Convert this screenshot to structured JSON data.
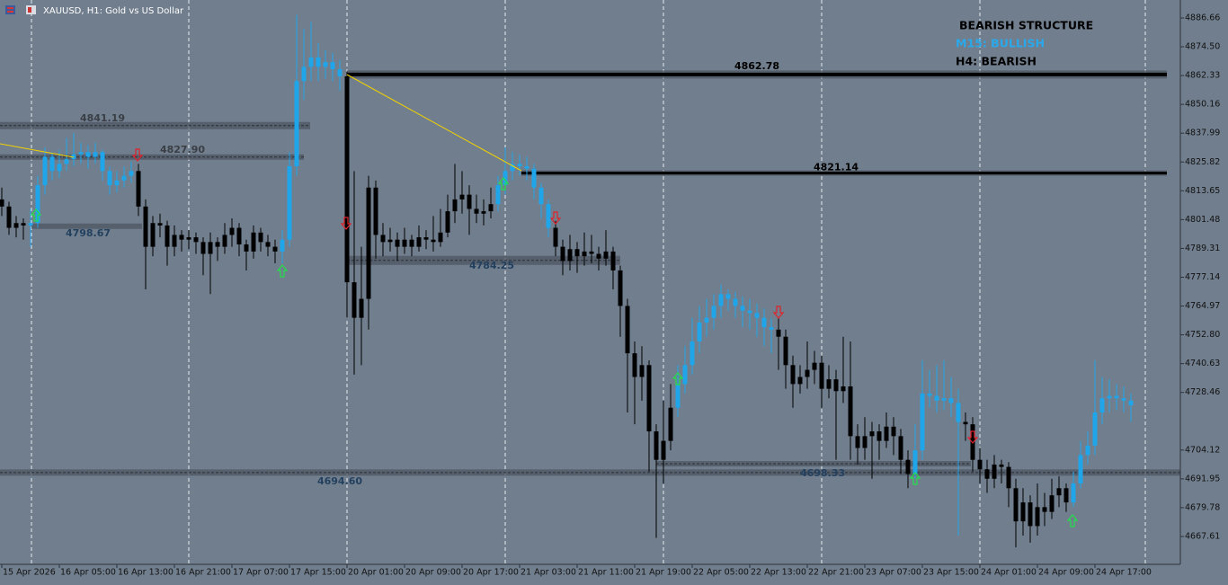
{
  "chart_data": {
    "type": "candlestick",
    "title": "XAUUSD, H1:  Gold vs US Dollar",
    "annotations": [
      "BEARISH STRUCTURE",
      "M15: BULLISH",
      "H4: BEARISH"
    ],
    "annotation_colors": [
      "#000000",
      "#29a9ea",
      "#000000"
    ],
    "palette": [
      "#000000",
      "#1fa6ea"
    ],
    "categories": [
      "15 Apr 2026",
      null,
      null,
      null,
      null,
      null,
      null,
      null,
      "16 Apr 05:00",
      null,
      null,
      null,
      null,
      null,
      null,
      null,
      "16 Apr 13:00",
      null,
      null,
      null,
      null,
      null,
      null,
      null,
      "16 Apr 21:00",
      null,
      null,
      null,
      null,
      null,
      null,
      null,
      "17 Apr 07:00",
      null,
      null,
      null,
      null,
      null,
      null,
      null,
      "17 Apr 15:00",
      null,
      null,
      null,
      null,
      null,
      null,
      null,
      "20 Apr 01:00",
      null,
      null,
      null,
      null,
      null,
      null,
      null,
      "20 Apr 09:00",
      null,
      null,
      null,
      null,
      null,
      null,
      null,
      "20 Apr 17:00",
      null,
      null,
      null,
      null,
      null,
      null,
      null,
      "21 Apr 03:00",
      null,
      null,
      null,
      null,
      null,
      null,
      null,
      "21 Apr 11:00",
      null,
      null,
      null,
      null,
      null,
      null,
      null,
      "21 Apr 19:00",
      null,
      null,
      null,
      null,
      null,
      null,
      null,
      "22 Apr 05:00",
      null,
      null,
      null,
      null,
      null,
      null,
      null,
      "22 Apr 13:00",
      null,
      null,
      null,
      null,
      null,
      null,
      null,
      "22 Apr 21:00",
      null,
      null,
      null,
      null,
      null,
      null,
      null,
      "23 Apr 07:00",
      null,
      null,
      null,
      null,
      null,
      null,
      null,
      "23 Apr 15:00",
      null,
      null,
      null,
      null,
      null,
      null,
      null,
      "24 Apr 01:00",
      null,
      null,
      null,
      null,
      null,
      null,
      null,
      "24 Apr 09:00",
      null,
      null,
      null,
      null,
      null,
      null,
      null,
      "24 Apr 17:00",
      null,
      null,
      null,
      null,
      null
    ],
    "ohlc": [
      [
        4810,
        4815,
        4803,
        4807
      ],
      [
        4807,
        4809,
        4795,
        4798
      ],
      [
        4798,
        4803,
        4794,
        4800
      ],
      [
        4800,
        4802,
        4793,
        4799
      ],
      [
        4799,
        4806,
        4790,
        4800
      ],
      [
        4800,
        4820,
        4798,
        4816
      ],
      [
        4816,
        4832,
        4812,
        4828
      ],
      [
        4828,
        4830,
        4818,
        4822
      ],
      [
        4822,
        4831,
        4819,
        4825
      ],
      [
        4825,
        4836,
        4822,
        4827
      ],
      [
        4827,
        4838,
        4824,
        4829
      ],
      [
        4829,
        4834,
        4825,
        4830
      ],
      [
        4830,
        4833,
        4823,
        4828
      ],
      [
        4828,
        4834,
        4825,
        4830
      ],
      [
        4830,
        4831,
        4818,
        4822
      ],
      [
        4822,
        4824,
        4812,
        4816
      ],
      [
        4816,
        4822,
        4813,
        4818
      ],
      [
        4818,
        4824,
        4815,
        4820
      ],
      [
        4820,
        4826,
        4817,
        4822
      ],
      [
        4822,
        4825,
        4803,
        4807
      ],
      [
        4807,
        4810,
        4772,
        4790
      ],
      [
        4790,
        4803,
        4786,
        4800
      ],
      [
        4800,
        4804,
        4794,
        4799
      ],
      [
        4799,
        4801,
        4782,
        4790
      ],
      [
        4790,
        4799,
        4786,
        4795
      ],
      [
        4795,
        4797,
        4788,
        4793
      ],
      [
        4793,
        4797,
        4789,
        4794
      ],
      [
        4794,
        4796,
        4787,
        4792
      ],
      [
        4792,
        4794,
        4778,
        4787
      ],
      [
        4787,
        4796,
        4770,
        4792
      ],
      [
        4792,
        4794,
        4784,
        4790
      ],
      [
        4790,
        4800,
        4787,
        4795
      ],
      [
        4795,
        4802,
        4790,
        4798
      ],
      [
        4798,
        4800,
        4786,
        4791
      ],
      [
        4791,
        4793,
        4780,
        4788
      ],
      [
        4788,
        4799,
        4785,
        4796
      ],
      [
        4796,
        4798,
        4788,
        4792
      ],
      [
        4792,
        4795,
        4786,
        4790
      ],
      [
        4790,
        4793,
        4783,
        4788
      ],
      [
        4788,
        4797,
        4783,
        4793
      ],
      [
        4793,
        4830,
        4790,
        4824
      ],
      [
        4824,
        4888,
        4820,
        4860
      ],
      [
        4860,
        4882,
        4852,
        4866
      ],
      [
        4866,
        4885,
        4860,
        4870
      ],
      [
        4870,
        4876,
        4860,
        4866
      ],
      [
        4866,
        4873,
        4861,
        4868
      ],
      [
        4868,
        4872,
        4860,
        4865
      ],
      [
        4865,
        4869,
        4856,
        4862
      ],
      [
        4862,
        4864,
        4760,
        4775
      ],
      [
        4775,
        4822,
        4736,
        4760
      ],
      [
        4760,
        4790,
        4740,
        4768
      ],
      [
        4768,
        4820,
        4755,
        4815
      ],
      [
        4815,
        4818,
        4785,
        4795
      ],
      [
        4795,
        4800,
        4786,
        4792
      ],
      [
        4792,
        4798,
        4788,
        4793
      ],
      [
        4793,
        4796,
        4784,
        4790
      ],
      [
        4790,
        4798,
        4787,
        4793
      ],
      [
        4793,
        4795,
        4786,
        4790
      ],
      [
        4790,
        4799,
        4788,
        4794
      ],
      [
        4794,
        4797,
        4789,
        4793
      ],
      [
        4793,
        4803,
        4788,
        4792
      ],
      [
        4792,
        4806,
        4790,
        4796
      ],
      [
        4796,
        4812,
        4794,
        4805
      ],
      [
        4805,
        4825,
        4800,
        4810
      ],
      [
        4810,
        4822,
        4804,
        4812
      ],
      [
        4812,
        4816,
        4795,
        4806
      ],
      [
        4806,
        4812,
        4800,
        4804
      ],
      [
        4804,
        4810,
        4799,
        4805
      ],
      [
        4805,
        4815,
        4802,
        4808
      ],
      [
        4808,
        4820,
        4805,
        4816
      ],
      [
        4816,
        4832,
        4812,
        4822
      ],
      [
        4822,
        4830,
        4818,
        4825
      ],
      [
        4825,
        4829,
        4820,
        4824
      ],
      [
        4824,
        4828,
        4818,
        4823
      ],
      [
        4823,
        4825,
        4810,
        4815
      ],
      [
        4815,
        4817,
        4802,
        4808
      ],
      [
        4808,
        4810,
        4794,
        4798
      ],
      [
        4798,
        4801,
        4786,
        4790
      ],
      [
        4790,
        4793,
        4778,
        4784
      ],
      [
        4784,
        4795,
        4780,
        4789
      ],
      [
        4789,
        4792,
        4779,
        4786
      ],
      [
        4786,
        4796,
        4782,
        4788
      ],
      [
        4788,
        4795,
        4783,
        4787
      ],
      [
        4787,
        4790,
        4780,
        4785
      ],
      [
        4785,
        4797,
        4782,
        4788
      ],
      [
        4788,
        4790,
        4772,
        4780
      ],
      [
        4780,
        4782,
        4752,
        4765
      ],
      [
        4765,
        4768,
        4720,
        4745
      ],
      [
        4745,
        4750,
        4715,
        4735
      ],
      [
        4735,
        4748,
        4725,
        4740
      ],
      [
        4740,
        4742,
        4695,
        4712
      ],
      [
        4712,
        4715,
        4667,
        4700
      ],
      [
        4700,
        4725,
        4690,
        4708
      ],
      [
        4708,
        4732,
        4704,
        4722
      ],
      [
        4722,
        4740,
        4718,
        4732
      ],
      [
        4732,
        4748,
        4728,
        4740
      ],
      [
        4740,
        4760,
        4736,
        4750
      ],
      [
        4750,
        4765,
        4745,
        4758
      ],
      [
        4758,
        4768,
        4752,
        4760
      ],
      [
        4760,
        4770,
        4755,
        4765
      ],
      [
        4765,
        4774,
        4760,
        4770
      ],
      [
        4770,
        4772,
        4763,
        4768
      ],
      [
        4768,
        4771,
        4760,
        4765
      ],
      [
        4765,
        4769,
        4756,
        4763
      ],
      [
        4763,
        4768,
        4755,
        4762
      ],
      [
        4762,
        4766,
        4752,
        4760
      ],
      [
        4760,
        4764,
        4748,
        4756
      ],
      [
        4756,
        4760,
        4745,
        4755
      ],
      [
        4755,
        4760,
        4738,
        4752
      ],
      [
        4752,
        4755,
        4730,
        4740
      ],
      [
        4740,
        4744,
        4722,
        4732
      ],
      [
        4732,
        4740,
        4728,
        4735
      ],
      [
        4735,
        4750,
        4730,
        4738
      ],
      [
        4738,
        4746,
        4732,
        4741
      ],
      [
        4741,
        4744,
        4722,
        4730
      ],
      [
        4730,
        4740,
        4726,
        4734
      ],
      [
        4734,
        4738,
        4700,
        4729
      ],
      [
        4729,
        4752,
        4724,
        4731
      ],
      [
        4731,
        4750,
        4700,
        4710
      ],
      [
        4710,
        4715,
        4698,
        4705
      ],
      [
        4705,
        4718,
        4700,
        4710
      ],
      [
        4710,
        4716,
        4692,
        4712
      ],
      [
        4712,
        4715,
        4700,
        4708
      ],
      [
        4708,
        4720,
        4705,
        4714
      ],
      [
        4714,
        4718,
        4702,
        4710
      ],
      [
        4710,
        4713,
        4694,
        4700
      ],
      [
        4700,
        4704,
        4688,
        4694
      ],
      [
        4694,
        4715,
        4692,
        4704
      ],
      [
        4704,
        4742,
        4700,
        4728
      ],
      [
        4728,
        4738,
        4722,
        4727
      ],
      [
        4727,
        4740,
        4720,
        4725
      ],
      [
        4725,
        4742,
        4721,
        4726
      ],
      [
        4726,
        4735,
        4718,
        4724
      ],
      [
        4724,
        4730,
        4668,
        4716
      ],
      [
        4716,
        4720,
        4708,
        4715
      ],
      [
        4715,
        4718,
        4695,
        4700
      ],
      [
        4700,
        4705,
        4690,
        4696
      ],
      [
        4696,
        4700,
        4686,
        4692
      ],
      [
        4692,
        4702,
        4688,
        4698
      ],
      [
        4698,
        4700,
        4690,
        4697
      ],
      [
        4697,
        4699,
        4680,
        4688
      ],
      [
        4688,
        4692,
        4663,
        4674
      ],
      [
        4674,
        4688,
        4668,
        4682
      ],
      [
        4682,
        4685,
        4665,
        4672
      ],
      [
        4672,
        4690,
        4668,
        4680
      ],
      [
        4680,
        4686,
        4672,
        4678
      ],
      [
        4678,
        4692,
        4675,
        4685
      ],
      [
        4685,
        4693,
        4680,
        4688
      ],
      [
        4688,
        4690,
        4678,
        4682
      ],
      [
        4682,
        4695,
        4680,
        4690
      ],
      [
        4690,
        4708,
        4688,
        4702
      ],
      [
        4702,
        4712,
        4698,
        4706
      ],
      [
        4706,
        4742,
        4702,
        4720
      ],
      [
        4720,
        4735,
        4715,
        4726
      ],
      [
        4726,
        4734,
        4720,
        4727
      ],
      [
        4727,
        4732,
        4721,
        4726
      ],
      [
        4726,
        4731,
        4720,
        4725
      ],
      [
        4725,
        4728,
        4716,
        4723
      ]
    ],
    "color_index": [
      0,
      0,
      0,
      0,
      1,
      1,
      1,
      1,
      1,
      1,
      1,
      1,
      1,
      1,
      1,
      1,
      1,
      1,
      1,
      0,
      0,
      0,
      0,
      0,
      0,
      0,
      0,
      0,
      0,
      0,
      0,
      0,
      0,
      0,
      0,
      0,
      0,
      0,
      0,
      1,
      1,
      1,
      1,
      1,
      1,
      1,
      1,
      1,
      0,
      0,
      0,
      0,
      0,
      0,
      0,
      0,
      0,
      0,
      0,
      0,
      0,
      0,
      0,
      0,
      0,
      0,
      0,
      0,
      0,
      1,
      1,
      1,
      1,
      1,
      1,
      1,
      1,
      0,
      0,
      0,
      0,
      0,
      0,
      0,
      0,
      0,
      0,
      0,
      0,
      0,
      0,
      0,
      0,
      0,
      1,
      1,
      1,
      1,
      1,
      1,
      1,
      1,
      1,
      1,
      1,
      1,
      1,
      1,
      0,
      0,
      0,
      0,
      0,
      0,
      0,
      0,
      0,
      0,
      0,
      0,
      0,
      0,
      0,
      0,
      0,
      0,
      0,
      1,
      1,
      1,
      1,
      1,
      1,
      1,
      0,
      0,
      0,
      0,
      0,
      0,
      0,
      0,
      0,
      0,
      0,
      0,
      0,
      0,
      0,
      1,
      1,
      1,
      1,
      1,
      1,
      1,
      1,
      1
    ],
    "levels": [
      {
        "value": 4862.78,
        "label": "4862.78",
        "color": "#000000"
      },
      {
        "value": 4821.14,
        "label": "4821.14",
        "color": "#000000"
      },
      {
        "value": 4841.19,
        "label": "4841.19",
        "color": "#3a3f46"
      },
      {
        "value": 4827.9,
        "label": "4827.90",
        "color": "#3a3f46"
      },
      {
        "value": 4798.67,
        "label": "4798.67",
        "color": "#23415f"
      },
      {
        "value": 4784.25,
        "label": "4784.25",
        "color": "#23415f"
      },
      {
        "value": 4694.6,
        "label": "4694.60",
        "color": "#23415f"
      },
      {
        "value": 4698.33,
        "label": "4698.33",
        "color": "#23415f"
      }
    ],
    "ylim": [
      4655.84,
      4894.25
    ],
    "yticks": [
      4667.61,
      4679.78,
      4691.95,
      4704.12,
      4728.46,
      4740.63,
      {
        "value": 4752.8,
        "label": "4752.80"
      },
      4764.97,
      4777.14,
      4789.31,
      4801.48,
      4813.65,
      4825.82,
      4837.99,
      4850.16,
      4862.33,
      {
        "value": 4874.5,
        "label": "4874.50"
      },
      4886.66
    ]
  }
}
